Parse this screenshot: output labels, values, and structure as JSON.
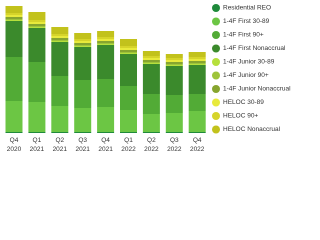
{
  "chart_data": {
    "type": "stacked_bar",
    "categories": [
      "Q4 2020",
      "Q1 2021",
      "Q2 2021",
      "Q3 2021",
      "Q4 2021",
      "Q1 2022",
      "Q2 2022",
      "Q3 2022",
      "Q4 2022"
    ],
    "ylim": [
      0,
      130
    ],
    "series": [
      {
        "name": "Residential REO",
        "color": "#1f8a3b",
        "values": [
          1,
          1,
          1,
          1,
          1,
          1,
          1,
          1,
          1
        ]
      },
      {
        "name": "1-4F First 30-89",
        "color": "#6cc644",
        "values": [
          31,
          30,
          26,
          24,
          25,
          22,
          18,
          19,
          21
        ]
      },
      {
        "name": "1-4F First 90+",
        "color": "#52ab36",
        "values": [
          44,
          40,
          30,
          28,
          28,
          24,
          20,
          18,
          17
        ]
      },
      {
        "name": "1-4F First Nonaccrual",
        "color": "#3b8a2c",
        "values": [
          36,
          34,
          34,
          33,
          34,
          32,
          30,
          29,
          29
        ]
      },
      {
        "name": "1-4F Junior 30-89",
        "color": "#b6e03c",
        "values": [
          1,
          1,
          1,
          1,
          1,
          1,
          1,
          1,
          1
        ]
      },
      {
        "name": "1-4F Junior 90+",
        "color": "#9ec43a",
        "values": [
          1,
          1,
          1,
          1,
          1,
          1,
          1,
          1,
          1
        ]
      },
      {
        "name": "1-4F Junior Nonaccrual",
        "color": "#87a52f",
        "values": [
          2,
          2,
          2,
          2,
          2,
          2,
          2,
          2,
          2
        ]
      },
      {
        "name": "HELOC 30-89",
        "color": "#e8ea3c",
        "values": [
          2,
          2,
          2,
          2,
          2,
          2,
          2,
          2,
          2
        ]
      },
      {
        "name": "HELOC 90+",
        "color": "#d6d42a",
        "values": [
          2,
          2,
          2,
          2,
          2,
          2,
          2,
          2,
          2
        ]
      },
      {
        "name": "HELOC Nonaccrual",
        "color": "#c2c21c",
        "values": [
          7,
          8,
          7,
          6,
          6,
          7,
          5,
          4,
          5
        ]
      }
    ]
  }
}
